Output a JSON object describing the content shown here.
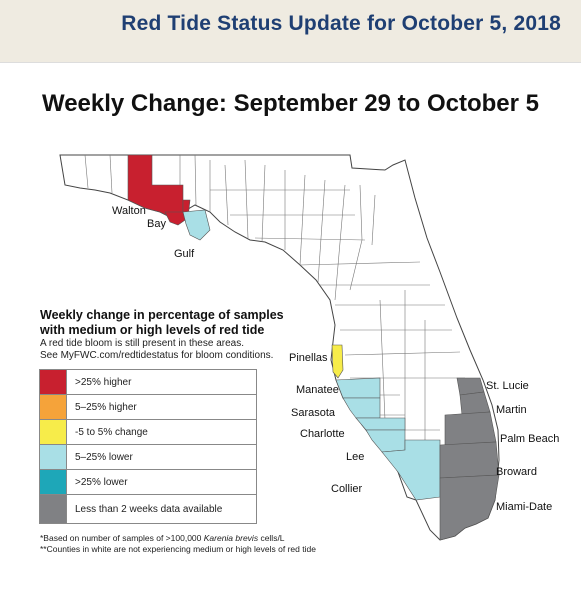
{
  "header": {
    "title": "Red Tide Status Update for October 5, 2018"
  },
  "map": {
    "subtitle": "Weekly Change: September 29 to October 5",
    "counties": [
      {
        "name": "Walton",
        "status": ">25% higher"
      },
      {
        "name": "Bay",
        "status": ">25% higher"
      },
      {
        "name": "Gulf",
        "status": "5–25% lower"
      },
      {
        "name": "Pinellas",
        "status": "-5 to 5% change"
      },
      {
        "name": "Manatee",
        "status": "5–25% lower"
      },
      {
        "name": "Sarasota",
        "status": "5–25% lower"
      },
      {
        "name": "Charlotte",
        "status": "5–25% lower"
      },
      {
        "name": "Lee",
        "status": "5–25% lower"
      },
      {
        "name": "Collier",
        "status": "5–25% lower"
      },
      {
        "name": "St. Lucie",
        "status": "Less than 2 weeks data available"
      },
      {
        "name": "Martin",
        "status": "Less than 2 weeks data available"
      },
      {
        "name": "Palm Beach",
        "status": "Less than 2 weeks data available"
      },
      {
        "name": "Broward",
        "status": "Less than 2 weeks data available"
      },
      {
        "name": "Miami-Date",
        "status": "Less than 2 weeks data available"
      }
    ]
  },
  "legend": {
    "heading": "Weekly change in percentage of samples with medium or high levels of red tide",
    "note_line1": "A red tide bloom is still present in these areas.",
    "note_line2": "See MyFWC.com/redtidestatus for bloom conditions.",
    "items": [
      {
        "label": ">25% higher",
        "color": "#c8202f"
      },
      {
        "label": "5–25% higher",
        "color": "#f5a33a"
      },
      {
        "label": "-5 to 5% change",
        "color": "#f7ec4a"
      },
      {
        "label": "5–25% lower",
        "color": "#a9dfe6"
      },
      {
        "label": ">25% lower",
        "color": "#1ea7b8"
      },
      {
        "label": "Less than 2 weeks data available",
        "color": "#808184"
      }
    ],
    "footnote1_pre": "*Based on number of samples of >100,000 ",
    "footnote1_species": "Karenia brevis",
    "footnote1_post": " cells/L",
    "footnote2": "**Counties in white are not experiencing medium or high levels of red tide"
  },
  "colors": {
    "header_bg": "#efebe1",
    "header_text": "#1f3f73",
    "county_line": "#555555"
  }
}
